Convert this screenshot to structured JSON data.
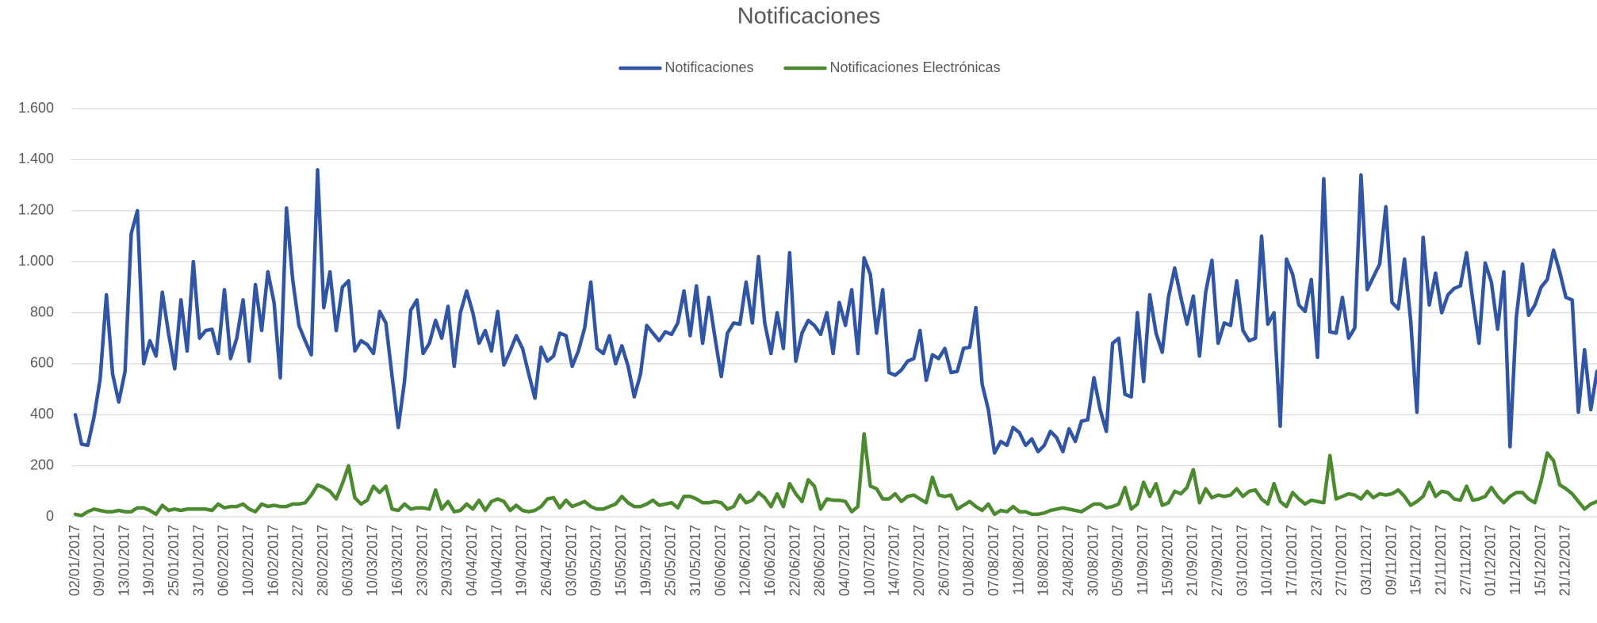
{
  "chart_data": {
    "type": "line",
    "title": "Notificaciones",
    "categories": [
      "02/01/2017",
      null,
      null,
      null,
      "09/01/2017",
      null,
      null,
      null,
      "13/01/2017",
      null,
      null,
      null,
      "19/01/2017",
      null,
      null,
      null,
      "25/01/2017",
      null,
      null,
      null,
      "31/01/2017",
      null,
      null,
      null,
      "06/02/2017",
      null,
      null,
      null,
      "10/02/2017",
      null,
      null,
      null,
      "16/02/2017",
      null,
      null,
      null,
      "22/02/2017",
      null,
      null,
      null,
      "28/02/2017",
      null,
      null,
      null,
      "06/03/2017",
      null,
      null,
      null,
      "10/03/2017",
      null,
      null,
      null,
      "16/03/2017",
      null,
      null,
      null,
      "23/03/2017",
      null,
      null,
      null,
      "29/03/2017",
      null,
      null,
      null,
      "04/04/2017",
      null,
      null,
      null,
      "10/04/2017",
      null,
      null,
      null,
      "19/04/2017",
      null,
      null,
      null,
      "26/04/2017",
      null,
      null,
      null,
      "03/05/2017",
      null,
      null,
      null,
      "09/05/2017",
      null,
      null,
      null,
      "15/05/2017",
      null,
      null,
      null,
      "19/05/2017",
      null,
      null,
      null,
      "25/05/2017",
      null,
      null,
      null,
      "31/05/2017",
      null,
      null,
      null,
      "06/06/2017",
      null,
      null,
      null,
      "12/06/2017",
      null,
      null,
      null,
      "16/06/2017",
      null,
      null,
      null,
      "22/06/2017",
      null,
      null,
      null,
      "28/06/2017",
      null,
      null,
      null,
      "04/07/2017",
      null,
      null,
      null,
      "10/07/2017",
      null,
      null,
      null,
      "14/07/2017",
      null,
      null,
      null,
      "20/07/2017",
      null,
      null,
      null,
      "26/07/2017",
      null,
      null,
      null,
      "01/08/2017",
      null,
      null,
      null,
      "07/08/2017",
      null,
      null,
      null,
      "11/08/2017",
      null,
      null,
      null,
      "18/08/2017",
      null,
      null,
      null,
      "24/08/2017",
      null,
      null,
      null,
      "30/08/2017",
      null,
      null,
      null,
      "05/09/2017",
      null,
      null,
      null,
      "11/09/2017",
      null,
      null,
      null,
      "15/09/2017",
      null,
      null,
      null,
      "21/09/2017",
      null,
      null,
      null,
      "27/09/2017",
      null,
      null,
      null,
      "03/10/2017",
      null,
      null,
      null,
      "10/10/2017",
      null,
      null,
      null,
      "17/10/2017",
      null,
      null,
      null,
      "23/10/2017",
      null,
      null,
      null,
      "27/10/2017",
      null,
      null,
      null,
      "03/11/2017",
      null,
      null,
      null,
      "09/11/2017",
      null,
      null,
      null,
      "15/11/2017",
      null,
      null,
      null,
      "21/11/2017",
      null,
      null,
      null,
      "27/11/2017",
      null,
      null,
      null,
      "01/12/2017",
      null,
      null,
      null,
      "11/12/2017",
      null,
      null,
      null,
      "15/12/2017",
      null,
      null,
      null,
      "21/12/2017",
      null,
      null,
      null,
      null,
      null
    ],
    "series": [
      {
        "name": "Notificaciones",
        "color": "#2f55a4",
        "values": [
          400,
          285,
          280,
          390,
          540,
          870,
          560,
          450,
          570,
          1110,
          1200,
          600,
          690,
          630,
          880,
          720,
          580,
          850,
          650,
          1000,
          700,
          730,
          735,
          640,
          890,
          620,
          700,
          850,
          610,
          910,
          730,
          960,
          840,
          545,
          1210,
          930,
          750,
          690,
          635,
          1360,
          820,
          960,
          730,
          900,
          925,
          650,
          690,
          675,
          640,
          805,
          760,
          550,
          350,
          530,
          810,
          850,
          640,
          680,
          770,
          700,
          825,
          590,
          800,
          885,
          800,
          680,
          730,
          650,
          805,
          595,
          650,
          710,
          660,
          560,
          465,
          665,
          610,
          630,
          720,
          710,
          590,
          650,
          740,
          920,
          660,
          640,
          710,
          600,
          670,
          590,
          470,
          560,
          750,
          720,
          690,
          725,
          715,
          760,
          885,
          710,
          905,
          680,
          860,
          700,
          550,
          720,
          760,
          755,
          920,
          760,
          1020,
          760,
          640,
          800,
          660,
          1035,
          610,
          720,
          770,
          750,
          715,
          800,
          640,
          840,
          750,
          890,
          640,
          1015,
          950,
          720,
          890,
          565,
          555,
          575,
          610,
          620,
          730,
          535,
          635,
          620,
          660,
          565,
          570,
          660,
          665,
          820,
          520,
          420,
          250,
          295,
          280,
          350,
          330,
          280,
          305,
          255,
          280,
          335,
          310,
          255,
          345,
          295,
          375,
          380,
          545,
          420,
          335,
          680,
          700,
          480,
          470,
          800,
          530,
          870,
          720,
          645,
          860,
          975,
          860,
          755,
          865,
          630,
          880,
          1005,
          680,
          760,
          750,
          925,
          730,
          690,
          700,
          1100,
          755,
          800,
          355,
          1010,
          950,
          830,
          805,
          930,
          625,
          1325,
          725,
          720,
          860,
          700,
          740,
          1340,
          890,
          940,
          990,
          1215,
          840,
          815,
          1010,
          770,
          410,
          1095,
          830,
          955,
          800,
          870,
          895,
          905,
          1035,
          850,
          680,
          995,
          920,
          735,
          960,
          275,
          780,
          990,
          790,
          830,
          900,
          930,
          1045,
          960,
          860,
          850,
          410,
          655,
          420,
          570
        ]
      },
      {
        "name": "Notificaciones Electrónicas",
        "color": "#4c8a30",
        "values": [
          10,
          5,
          20,
          30,
          25,
          20,
          20,
          25,
          20,
          20,
          35,
          35,
          25,
          10,
          45,
          25,
          30,
          25,
          30,
          30,
          30,
          30,
          25,
          50,
          35,
          40,
          40,
          50,
          30,
          20,
          50,
          40,
          45,
          40,
          40,
          50,
          50,
          55,
          85,
          125,
          115,
          100,
          70,
          130,
          200,
          75,
          50,
          65,
          120,
          95,
          120,
          30,
          25,
          50,
          30,
          35,
          35,
          30,
          105,
          30,
          60,
          20,
          25,
          50,
          30,
          65,
          25,
          60,
          70,
          60,
          25,
          45,
          25,
          20,
          25,
          40,
          70,
          75,
          35,
          65,
          40,
          50,
          60,
          40,
          30,
          30,
          40,
          50,
          80,
          55,
          40,
          40,
          50,
          65,
          45,
          50,
          55,
          35,
          80,
          80,
          70,
          55,
          55,
          60,
          55,
          30,
          40,
          85,
          55,
          65,
          95,
          75,
          40,
          90,
          40,
          130,
          90,
          60,
          145,
          120,
          30,
          70,
          65,
          65,
          60,
          20,
          40,
          325,
          120,
          110,
          70,
          70,
          90,
          60,
          80,
          85,
          70,
          55,
          155,
          85,
          80,
          85,
          30,
          45,
          60,
          40,
          25,
          50,
          10,
          25,
          20,
          40,
          20,
          20,
          10,
          10,
          15,
          25,
          30,
          35,
          30,
          25,
          20,
          35,
          50,
          50,
          35,
          40,
          50,
          115,
          30,
          50,
          135,
          80,
          130,
          45,
          55,
          100,
          90,
          115,
          185,
          55,
          110,
          75,
          85,
          80,
          85,
          110,
          80,
          100,
          105,
          70,
          50,
          130,
          60,
          40,
          95,
          70,
          50,
          65,
          60,
          55,
          240,
          70,
          80,
          90,
          85,
          70,
          100,
          75,
          90,
          85,
          90,
          105,
          80,
          45,
          60,
          80,
          135,
          80,
          100,
          95,
          70,
          65,
          120,
          65,
          70,
          80,
          115,
          80,
          55,
          80,
          95,
          95,
          70,
          55,
          140,
          250,
          220,
          125,
          110,
          90,
          60,
          30,
          50,
          60
        ]
      }
    ],
    "ylim": [
      0,
      1600
    ],
    "yticks": [
      0,
      200,
      400,
      600,
      800,
      {
        "value": 1000,
        "label": "1.000"
      },
      {
        "value": 1200,
        "label": "1.200"
      },
      {
        "value": 1400,
        "label": "1.400"
      },
      {
        "value": 1600,
        "label": "1.600"
      }
    ],
    "grid": true,
    "legend": "top"
  }
}
